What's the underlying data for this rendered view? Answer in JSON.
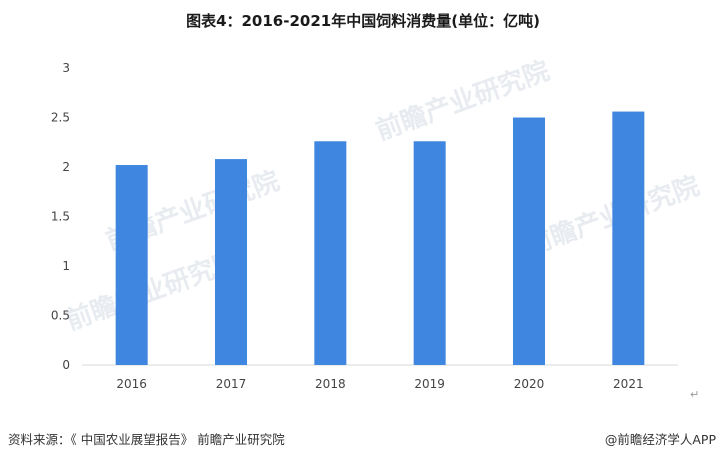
{
  "chart_data": {
    "type": "bar",
    "title": "图表4：2016-2021年中国饲料消费量(单位：亿吨)",
    "categories": [
      "2016",
      "2017",
      "2018",
      "2019",
      "2020",
      "2021"
    ],
    "values": [
      2.02,
      2.08,
      2.26,
      2.26,
      2.5,
      2.56
    ],
    "ylim": [
      0,
      3
    ],
    "yticks": [
      0,
      0.5,
      1,
      1.5,
      2,
      2.5,
      3
    ],
    "ytick_labels": [
      "0",
      "0.5",
      "1",
      "1.5",
      "2",
      "2.5",
      "3"
    ],
    "grid": false,
    "legend": "none",
    "bar_color": "#3f86e0"
  },
  "footer": {
    "source": "资料来源：《 中国农业展望报告》 前瞻产业研究院",
    "app": "@前瞻经济学人APP"
  },
  "watermark": {
    "text": "前瞻产业研究院"
  },
  "icons": {
    "return_mark": "↵"
  }
}
